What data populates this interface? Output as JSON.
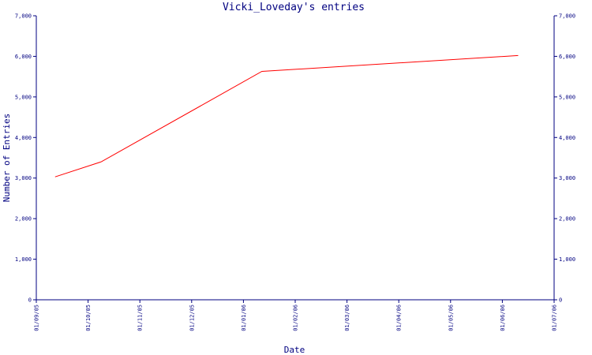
{
  "chart_data": {
    "type": "line",
    "title": "Vicki_Loveday's entries",
    "xlabel": "Date",
    "ylabel": "Number of Entries",
    "x_ticks": [
      "01/09/05",
      "01/10/05",
      "01/11/05",
      "01/12/05",
      "01/01/06",
      "01/02/06",
      "01/03/06",
      "01/04/06",
      "01/05/06",
      "01/06/06",
      "01/07/06"
    ],
    "y_ticks": [
      "0",
      "1,000",
      "2,000",
      "3,000",
      "4,000",
      "5,000",
      "6,000",
      "7,000"
    ],
    "ylim": [
      0,
      7000
    ],
    "xlim": [
      "2005-09-01",
      "2006-07-01"
    ],
    "grid": false,
    "right_axis_mirror": true,
    "colors": {
      "axis": "#000080",
      "text": "#000080",
      "line": "#ff0000",
      "background": "#ffffff"
    },
    "series": [
      {
        "x": [
          "2005-09-12",
          "2005-10-09",
          "2006-01-11",
          "2006-06-10"
        ],
        "y": [
          3030,
          3400,
          5630,
          6020
        ]
      }
    ]
  }
}
